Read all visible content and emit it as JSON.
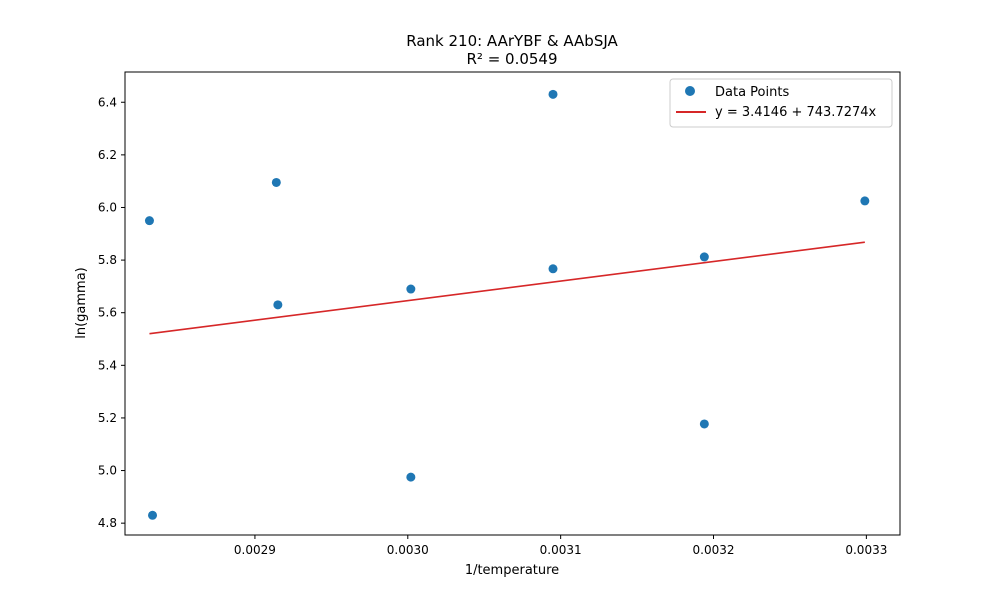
{
  "chart_data": {
    "type": "scatter",
    "title": "Rank 210: AArYBF & AAbSJA",
    "subtitle": "R² = 0.0549",
    "xlabel": "1/temperature",
    "ylabel": "ln(gamma)",
    "xlim": [
      0.002815,
      0.003322
    ],
    "ylim": [
      4.755,
      6.515
    ],
    "x_ticks": [
      0.0029,
      0.003,
      0.0031,
      0.0032,
      0.0033
    ],
    "x_tick_labels": [
      "0.0029",
      "0.0030",
      "0.0031",
      "0.0032",
      "0.0033"
    ],
    "y_ticks": [
      4.8,
      5.0,
      5.2,
      5.4,
      5.6,
      5.8,
      6.0,
      6.2,
      6.4
    ],
    "y_tick_labels": [
      "4.8",
      "5.0",
      "5.2",
      "5.4",
      "5.6",
      "5.8",
      "6.0",
      "6.2",
      "6.4"
    ],
    "grid": false,
    "legend_position": "top-right",
    "series": [
      {
        "name": "Data Points",
        "kind": "scatter",
        "color": "#1f77b4",
        "points": [
          {
            "x": 0.002831,
            "y": 5.95
          },
          {
            "x": 0.002833,
            "y": 4.83
          },
          {
            "x": 0.002914,
            "y": 6.095
          },
          {
            "x": 0.002915,
            "y": 5.63
          },
          {
            "x": 0.003002,
            "y": 5.69
          },
          {
            "x": 0.003002,
            "y": 4.975
          },
          {
            "x": 0.003095,
            "y": 6.43
          },
          {
            "x": 0.003095,
            "y": 5.767
          },
          {
            "x": 0.003194,
            "y": 5.812
          },
          {
            "x": 0.003194,
            "y": 5.177
          },
          {
            "x": 0.003299,
            "y": 6.025
          }
        ]
      },
      {
        "name": "y = 3.4146 + 743.7274x",
        "kind": "line",
        "color": "#d62728",
        "intercept": 3.4146,
        "slope": 743.7274,
        "x_range": [
          0.002831,
          0.003299
        ]
      }
    ]
  }
}
